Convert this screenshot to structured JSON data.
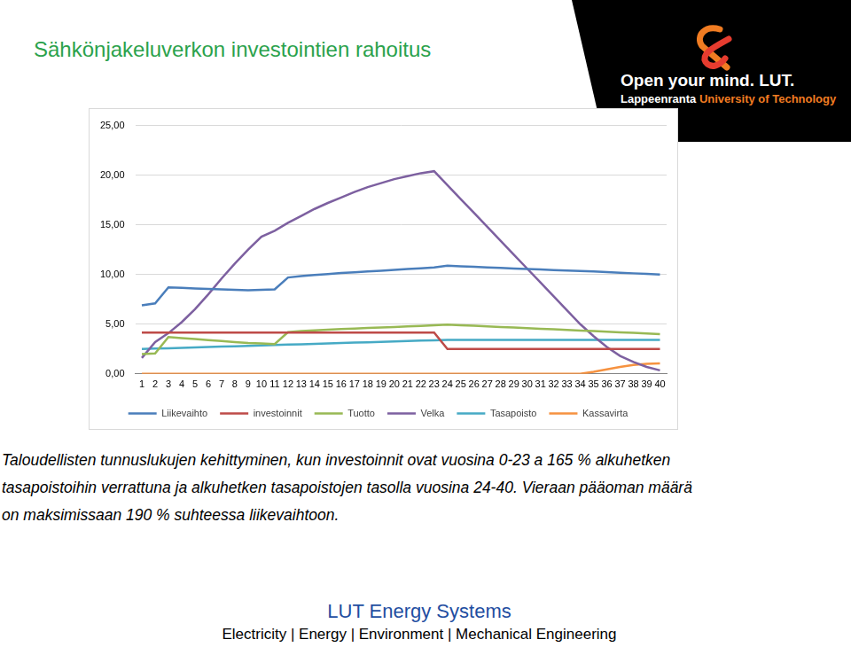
{
  "page": {
    "title": "Sähkönjakeluverkon investointien rahoitus",
    "logo": {
      "tagline": "Open your mind. LUT.",
      "university": "Lappeenranta",
      "university_rest": "University of Technology"
    },
    "caption": [
      "Taloudellisten tunnuslukujen kehittyminen, kun investoinnit ovat vuosina 0-23 a 165 % alkuhetken",
      "tasapoistoihin verrattuna ja alkuhetken tasapoistojen tasolla vuosina 24-40. Vieraan pääoman määrä",
      "on maksimissaan 190 % suhteessa liikevaihtoon."
    ],
    "footer": {
      "title": "LUT Energy Systems",
      "subtitle": "Electricity | Energy | Environment | Mechanical Engineering"
    }
  },
  "chart_data": {
    "type": "line",
    "categories": [
      1,
      2,
      3,
      4,
      5,
      6,
      7,
      8,
      9,
      10,
      11,
      12,
      13,
      14,
      15,
      16,
      17,
      18,
      19,
      20,
      21,
      22,
      23,
      24,
      25,
      26,
      27,
      28,
      29,
      30,
      31,
      32,
      33,
      34,
      35,
      36,
      37,
      38,
      39,
      40
    ],
    "ylim": [
      0,
      25
    ],
    "yticks": [
      {
        "value": 0,
        "label": "0,00"
      },
      {
        "value": 5,
        "label": "5,00"
      },
      {
        "value": 10,
        "label": "10,00"
      },
      {
        "value": 15,
        "label": "15,00"
      },
      {
        "value": 20,
        "label": "20,00"
      },
      {
        "value": 25,
        "label": "25,00"
      }
    ],
    "grid": true,
    "legend": "bottom",
    "series": [
      {
        "name": "Liikevaihto",
        "color": "#4a7ebb",
        "marker": "none",
        "line_style": "solid",
        "values": [
          6.9,
          7.1,
          8.7,
          8.65,
          8.6,
          8.55,
          8.5,
          8.45,
          8.42,
          8.45,
          8.5,
          9.7,
          9.85,
          9.95,
          10.05,
          10.15,
          10.22,
          10.3,
          10.38,
          10.46,
          10.55,
          10.63,
          10.72,
          10.88,
          10.83,
          10.78,
          10.72,
          10.67,
          10.61,
          10.56,
          10.5,
          10.45,
          10.4,
          10.35,
          10.3,
          10.24,
          10.18,
          10.12,
          10.06,
          10.0
        ]
      },
      {
        "name": "investoinnit",
        "color": "#be4b48",
        "marker": "none",
        "line_style": "solid",
        "values": [
          4.15,
          4.15,
          4.15,
          4.15,
          4.15,
          4.15,
          4.15,
          4.15,
          4.15,
          4.15,
          4.15,
          4.15,
          4.15,
          4.15,
          4.15,
          4.15,
          4.15,
          4.15,
          4.15,
          4.15,
          4.15,
          4.15,
          4.15,
          2.5,
          2.5,
          2.5,
          2.5,
          2.5,
          2.5,
          2.5,
          2.5,
          2.5,
          2.5,
          2.5,
          2.5,
          2.5,
          2.5,
          2.5,
          2.5,
          2.5
        ]
      },
      {
        "name": "Tuotto",
        "color": "#98b954",
        "marker": "none",
        "line_style": "solid",
        "values": [
          2.0,
          2.05,
          3.7,
          3.6,
          3.5,
          3.4,
          3.3,
          3.2,
          3.1,
          3.05,
          3.0,
          4.2,
          4.3,
          4.38,
          4.45,
          4.5,
          4.56,
          4.62,
          4.67,
          4.72,
          4.77,
          4.82,
          4.88,
          4.95,
          4.9,
          4.84,
          4.78,
          4.72,
          4.66,
          4.6,
          4.54,
          4.48,
          4.42,
          4.36,
          4.3,
          4.24,
          4.18,
          4.12,
          4.06,
          4.0
        ]
      },
      {
        "name": "Velka",
        "color": "#7d60a0",
        "marker": "none",
        "line_style": "solid",
        "values": [
          1.6,
          3.2,
          4.1,
          5.2,
          6.5,
          8.0,
          9.6,
          11.1,
          12.5,
          13.8,
          14.4,
          15.2,
          15.9,
          16.6,
          17.2,
          17.75,
          18.3,
          18.8,
          19.2,
          19.6,
          19.9,
          20.2,
          20.4,
          19.0,
          17.6,
          16.2,
          14.8,
          13.4,
          12.0,
          10.6,
          9.2,
          7.8,
          6.4,
          5.0,
          3.8,
          2.7,
          1.8,
          1.2,
          0.7,
          0.35
        ]
      },
      {
        "name": "Tasapoisto",
        "color": "#46aac5",
        "marker": "none",
        "line_style": "solid",
        "values": [
          2.5,
          2.54,
          2.58,
          2.62,
          2.66,
          2.7,
          2.74,
          2.78,
          2.82,
          2.86,
          2.9,
          2.94,
          2.98,
          3.02,
          3.06,
          3.1,
          3.14,
          3.18,
          3.22,
          3.26,
          3.3,
          3.34,
          3.38,
          3.42,
          3.42,
          3.42,
          3.42,
          3.42,
          3.42,
          3.42,
          3.42,
          3.42,
          3.42,
          3.42,
          3.42,
          3.42,
          3.42,
          3.42,
          3.42,
          3.42
        ]
      },
      {
        "name": "Kassavirta",
        "color": "#f69240",
        "marker": "none",
        "line_style": "solid",
        "values": [
          0,
          0,
          0,
          0,
          0,
          0,
          0,
          0,
          0,
          0,
          0,
          0,
          0,
          0,
          0,
          0,
          0,
          0,
          0,
          0,
          0,
          0,
          0,
          0,
          0,
          0,
          0,
          0,
          0,
          0,
          0,
          0,
          0,
          0,
          0.2,
          0.45,
          0.7,
          0.9,
          1.0,
          1.05
        ]
      }
    ]
  }
}
